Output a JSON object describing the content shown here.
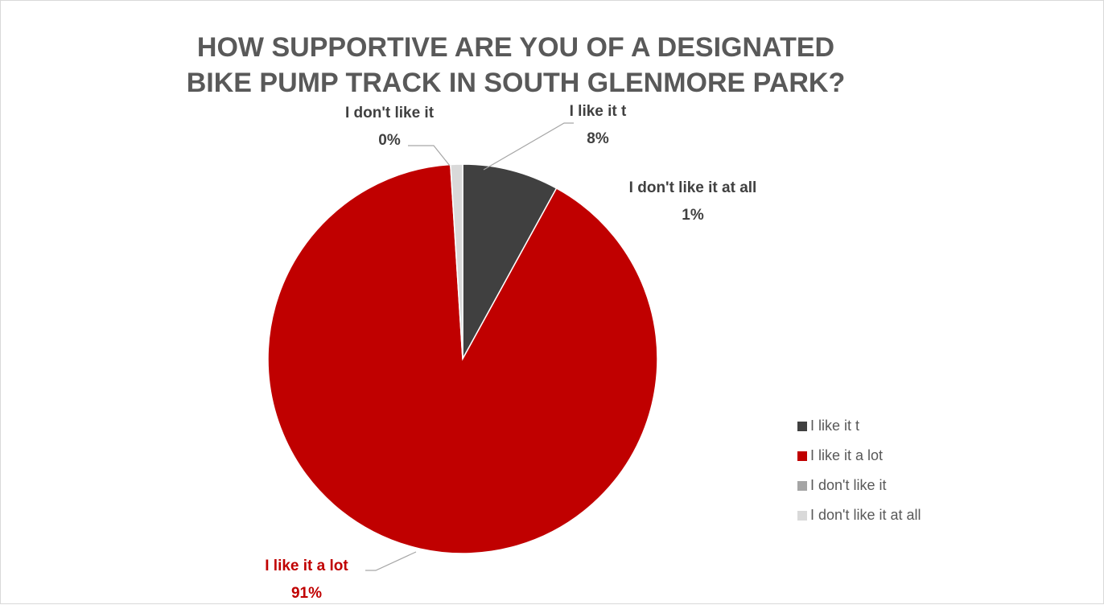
{
  "chart_data": {
    "type": "pie",
    "title": "HOW SUPPORTIVE ARE YOU OF A DESIGNATED BIKE PUMP TRACK IN SOUTH GLENMORE PARK?",
    "start_angle_deg": 0,
    "direction": "clockwise",
    "legend_position": "right",
    "slices": [
      {
        "name": "I like it t",
        "value": 8,
        "label": "8%",
        "color": "#404040",
        "label_color": "#404040"
      },
      {
        "name": "I like it a lot",
        "value": 91,
        "label": "91%",
        "color": "#c00000",
        "label_color": "#c00000"
      },
      {
        "name": "I don't like it",
        "value": 0,
        "label": "0%",
        "color": "#a5a5a5",
        "label_color": "#404040"
      },
      {
        "name": "I don't like it at all",
        "value": 1,
        "label": "1%",
        "color": "#d9d9d9",
        "label_color": "#404040"
      }
    ]
  }
}
